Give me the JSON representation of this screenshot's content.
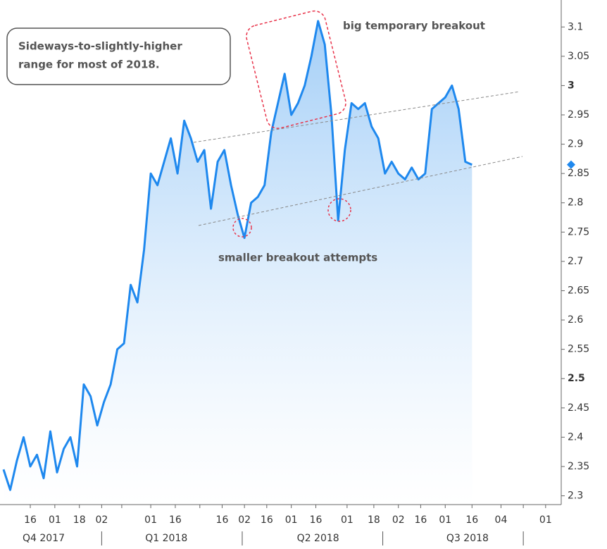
{
  "chart_data": {
    "type": "area",
    "annotations": {
      "box": [
        "Sideways-to-slightly-higher",
        "range for most of 2018."
      ],
      "breakout": "big temporary breakout",
      "attempts": "smaller breakout attempts"
    },
    "color": "#1e88ee",
    "x": [
      0,
      3,
      6,
      9,
      12,
      15,
      18,
      21,
      24,
      27,
      30,
      33,
      36,
      39,
      42,
      45,
      48,
      51,
      54,
      57,
      60,
      63,
      66,
      69,
      72,
      75,
      78,
      81,
      84,
      87,
      90,
      93,
      96,
      99,
      102,
      105,
      108,
      111,
      114,
      117,
      120,
      123,
      126,
      129,
      132,
      135,
      138,
      141,
      144,
      147,
      150,
      153,
      156,
      159,
      162,
      165,
      168,
      171,
      174,
      177,
      180,
      183,
      186,
      189,
      192,
      195,
      198,
      201,
      204,
      207,
      210
    ],
    "values": [
      2.345,
      2.31,
      2.36,
      2.4,
      2.35,
      2.37,
      2.33,
      2.41,
      2.34,
      2.38,
      2.4,
      2.35,
      2.49,
      2.47,
      2.42,
      2.46,
      2.49,
      2.55,
      2.56,
      2.66,
      2.63,
      2.72,
      2.85,
      2.83,
      2.87,
      2.91,
      2.85,
      2.94,
      2.91,
      2.87,
      2.89,
      2.79,
      2.87,
      2.89,
      2.83,
      2.78,
      2.74,
      2.8,
      2.81,
      2.83,
      2.92,
      2.97,
      3.02,
      2.95,
      2.97,
      3.0,
      3.05,
      3.11,
      3.07,
      2.95,
      2.77,
      2.89,
      2.97,
      2.96,
      2.97,
      2.93,
      2.91,
      2.85,
      2.87,
      2.85,
      2.84,
      2.86,
      2.84,
      2.85,
      2.96,
      2.97,
      2.98,
      3.0,
      2.96,
      2.87,
      2.865
    ],
    "xlim": [
      0,
      250
    ],
    "xticks": [
      {
        "value": 12,
        "label": "16"
      },
      {
        "value": 23,
        "label": "01"
      },
      {
        "value": 34,
        "label": "18"
      },
      {
        "value": 44,
        "label": "02"
      },
      {
        "value": 53,
        "label": null
      },
      {
        "value": 66,
        "label": "01"
      },
      {
        "value": 77,
        "label": "16"
      },
      {
        "value": 88,
        "label": null
      },
      {
        "value": 98,
        "label": "16"
      },
      {
        "value": 108,
        "label": "02"
      },
      {
        "value": 118,
        "label": "16"
      },
      {
        "value": 129,
        "label": "01"
      },
      {
        "value": 140,
        "label": "16"
      },
      {
        "value": 154,
        "label": "01"
      },
      {
        "value": 166,
        "label": "18"
      },
      {
        "value": 177,
        "label": "02"
      },
      {
        "value": 187,
        "label": "16"
      },
      {
        "value": 198,
        "label": "01"
      },
      {
        "value": 210,
        "label": "16"
      },
      {
        "value": 223,
        "label": "04"
      },
      {
        "value": 233,
        "label": null
      },
      {
        "value": 243,
        "label": "01"
      }
    ],
    "quarter_ticks": [
      {
        "value": 18,
        "label": "Q4 2017"
      },
      {
        "value": 73,
        "label": "Q1 2018"
      },
      {
        "value": 141,
        "label": "Q2 2018"
      },
      {
        "value": 208,
        "label": "Q3 2018"
      }
    ],
    "quarter_dividers": [
      44,
      107,
      170,
      233
    ],
    "ylim": [
      2.285,
      3.14
    ],
    "yticks": [
      3.1,
      3.05,
      3,
      2.95,
      2.9,
      2.85,
      2.8,
      2.75,
      2.7,
      2.65,
      2.6,
      2.55,
      2.5,
      2.45,
      2.4,
      2.35,
      2.3
    ]
  }
}
